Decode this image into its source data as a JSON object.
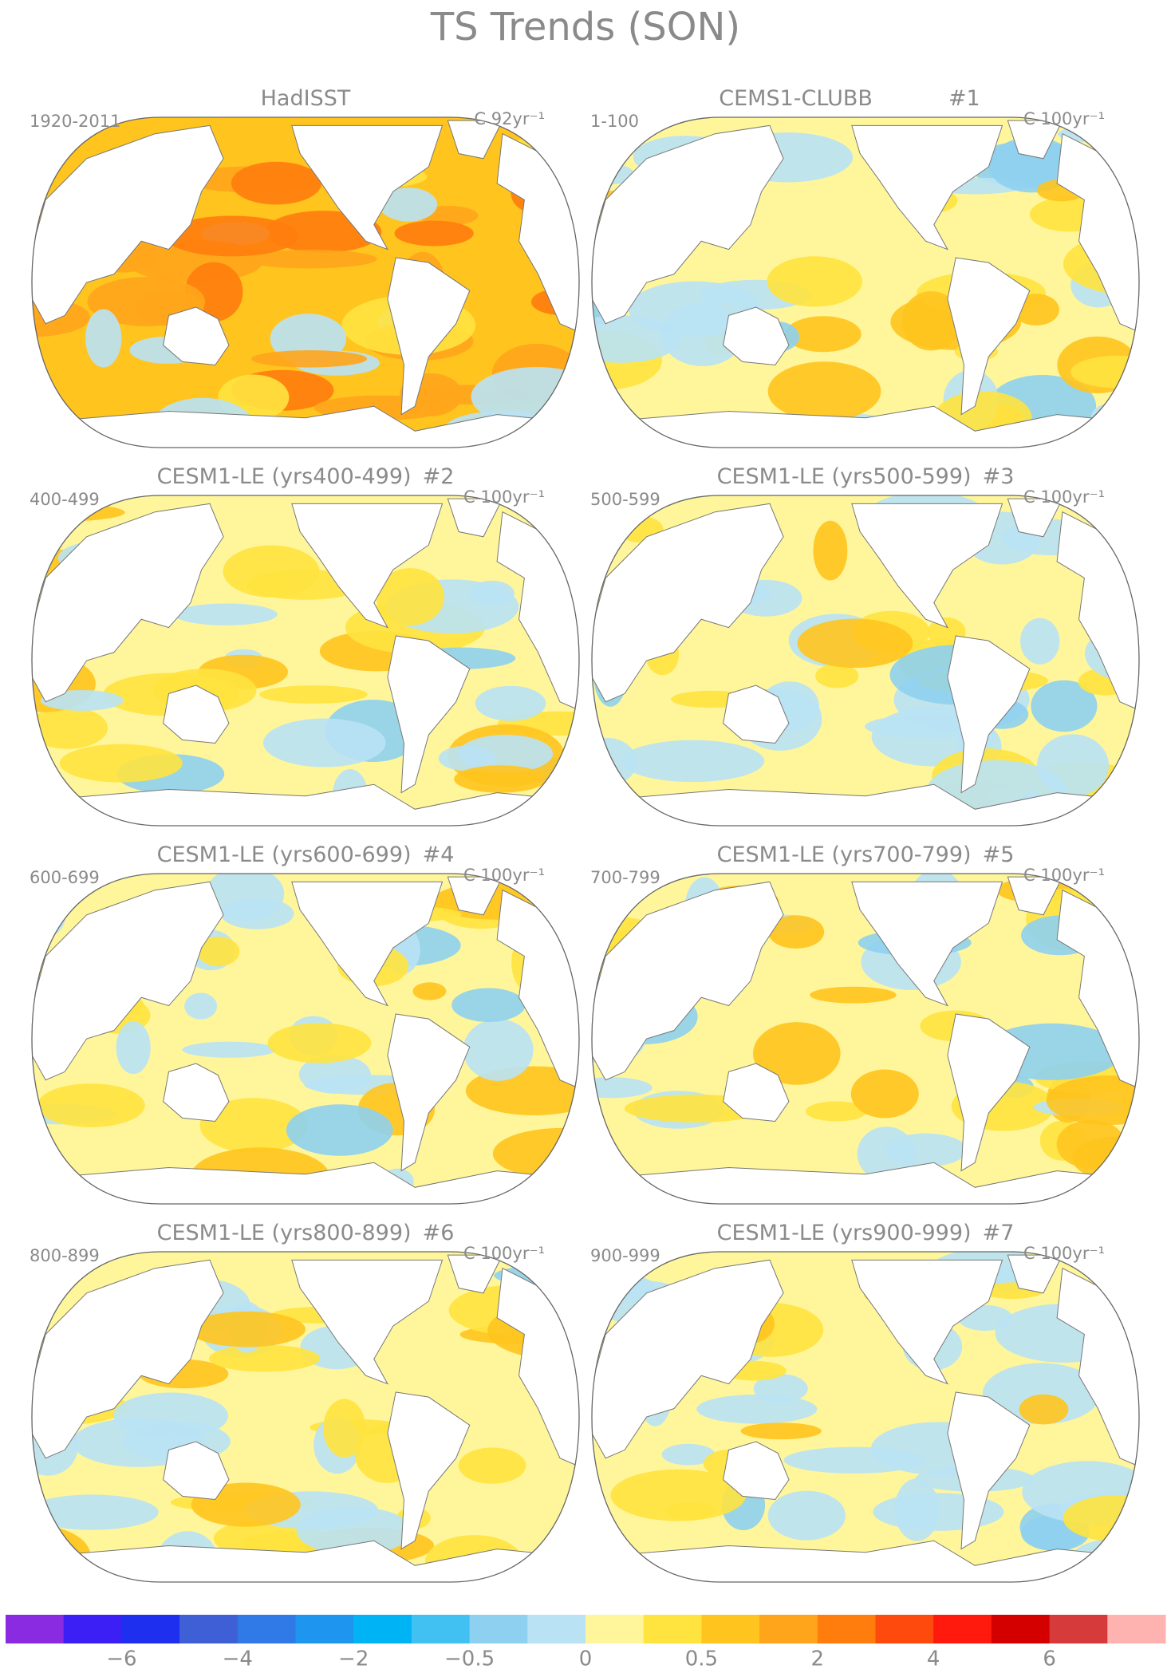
{
  "title": "TS Trends (SON)",
  "panels": [
    {
      "title": "HadISST",
      "period": "1920-2011",
      "units": "C 92yr⁻¹"
    },
    {
      "title": "CEMS1-CLUBB",
      "number": "#1",
      "period": "1-100",
      "units": "C 100yr⁻¹"
    },
    {
      "title": "CESM1-LE (yrs400-499)",
      "number": "#2",
      "period": "400-499",
      "units": "C 100yr⁻¹"
    },
    {
      "title": "CESM1-LE (yrs500-599)",
      "number": "#3",
      "period": "500-599",
      "units": "C 100yr⁻¹"
    },
    {
      "title": "CESM1-LE (yrs600-699)",
      "number": "#4",
      "period": "600-699",
      "units": "C 100yr⁻¹"
    },
    {
      "title": "CESM1-LE (yrs700-799)",
      "number": "#5",
      "period": "700-799",
      "units": "C 100yr⁻¹"
    },
    {
      "title": "CESM1-LE (yrs800-899)",
      "number": "#6",
      "period": "800-899",
      "units": "C 100yr⁻¹"
    },
    {
      "title": "CESM1-LE (yrs900-999)",
      "number": "#7",
      "period": "900-999",
      "units": "C 100yr⁻¹"
    }
  ],
  "colorbar": {
    "colors": [
      "#8a2be2",
      "#3b1ff5",
      "#1f2ff0",
      "#3f5fd6",
      "#2f7ae6",
      "#1e96f0",
      "#00b3f5",
      "#41c0f2",
      "#8ed0ef",
      "#b9e2f5",
      "#fff69b",
      "#ffe33f",
      "#ffc41e",
      "#ffa51b",
      "#ff7d0d",
      "#ff4a0d",
      "#ff1a0d",
      "#d40000",
      "#d63a3a",
      "#ffb3b0"
    ],
    "ticks": [
      {
        "value": -6,
        "label": "−6"
      },
      {
        "value": -4,
        "label": "−4"
      },
      {
        "value": -2,
        "label": "−2"
      },
      {
        "value": -0.5,
        "label": "−0.5"
      },
      0,
      0.5,
      2,
      4,
      6
    ]
  }
}
